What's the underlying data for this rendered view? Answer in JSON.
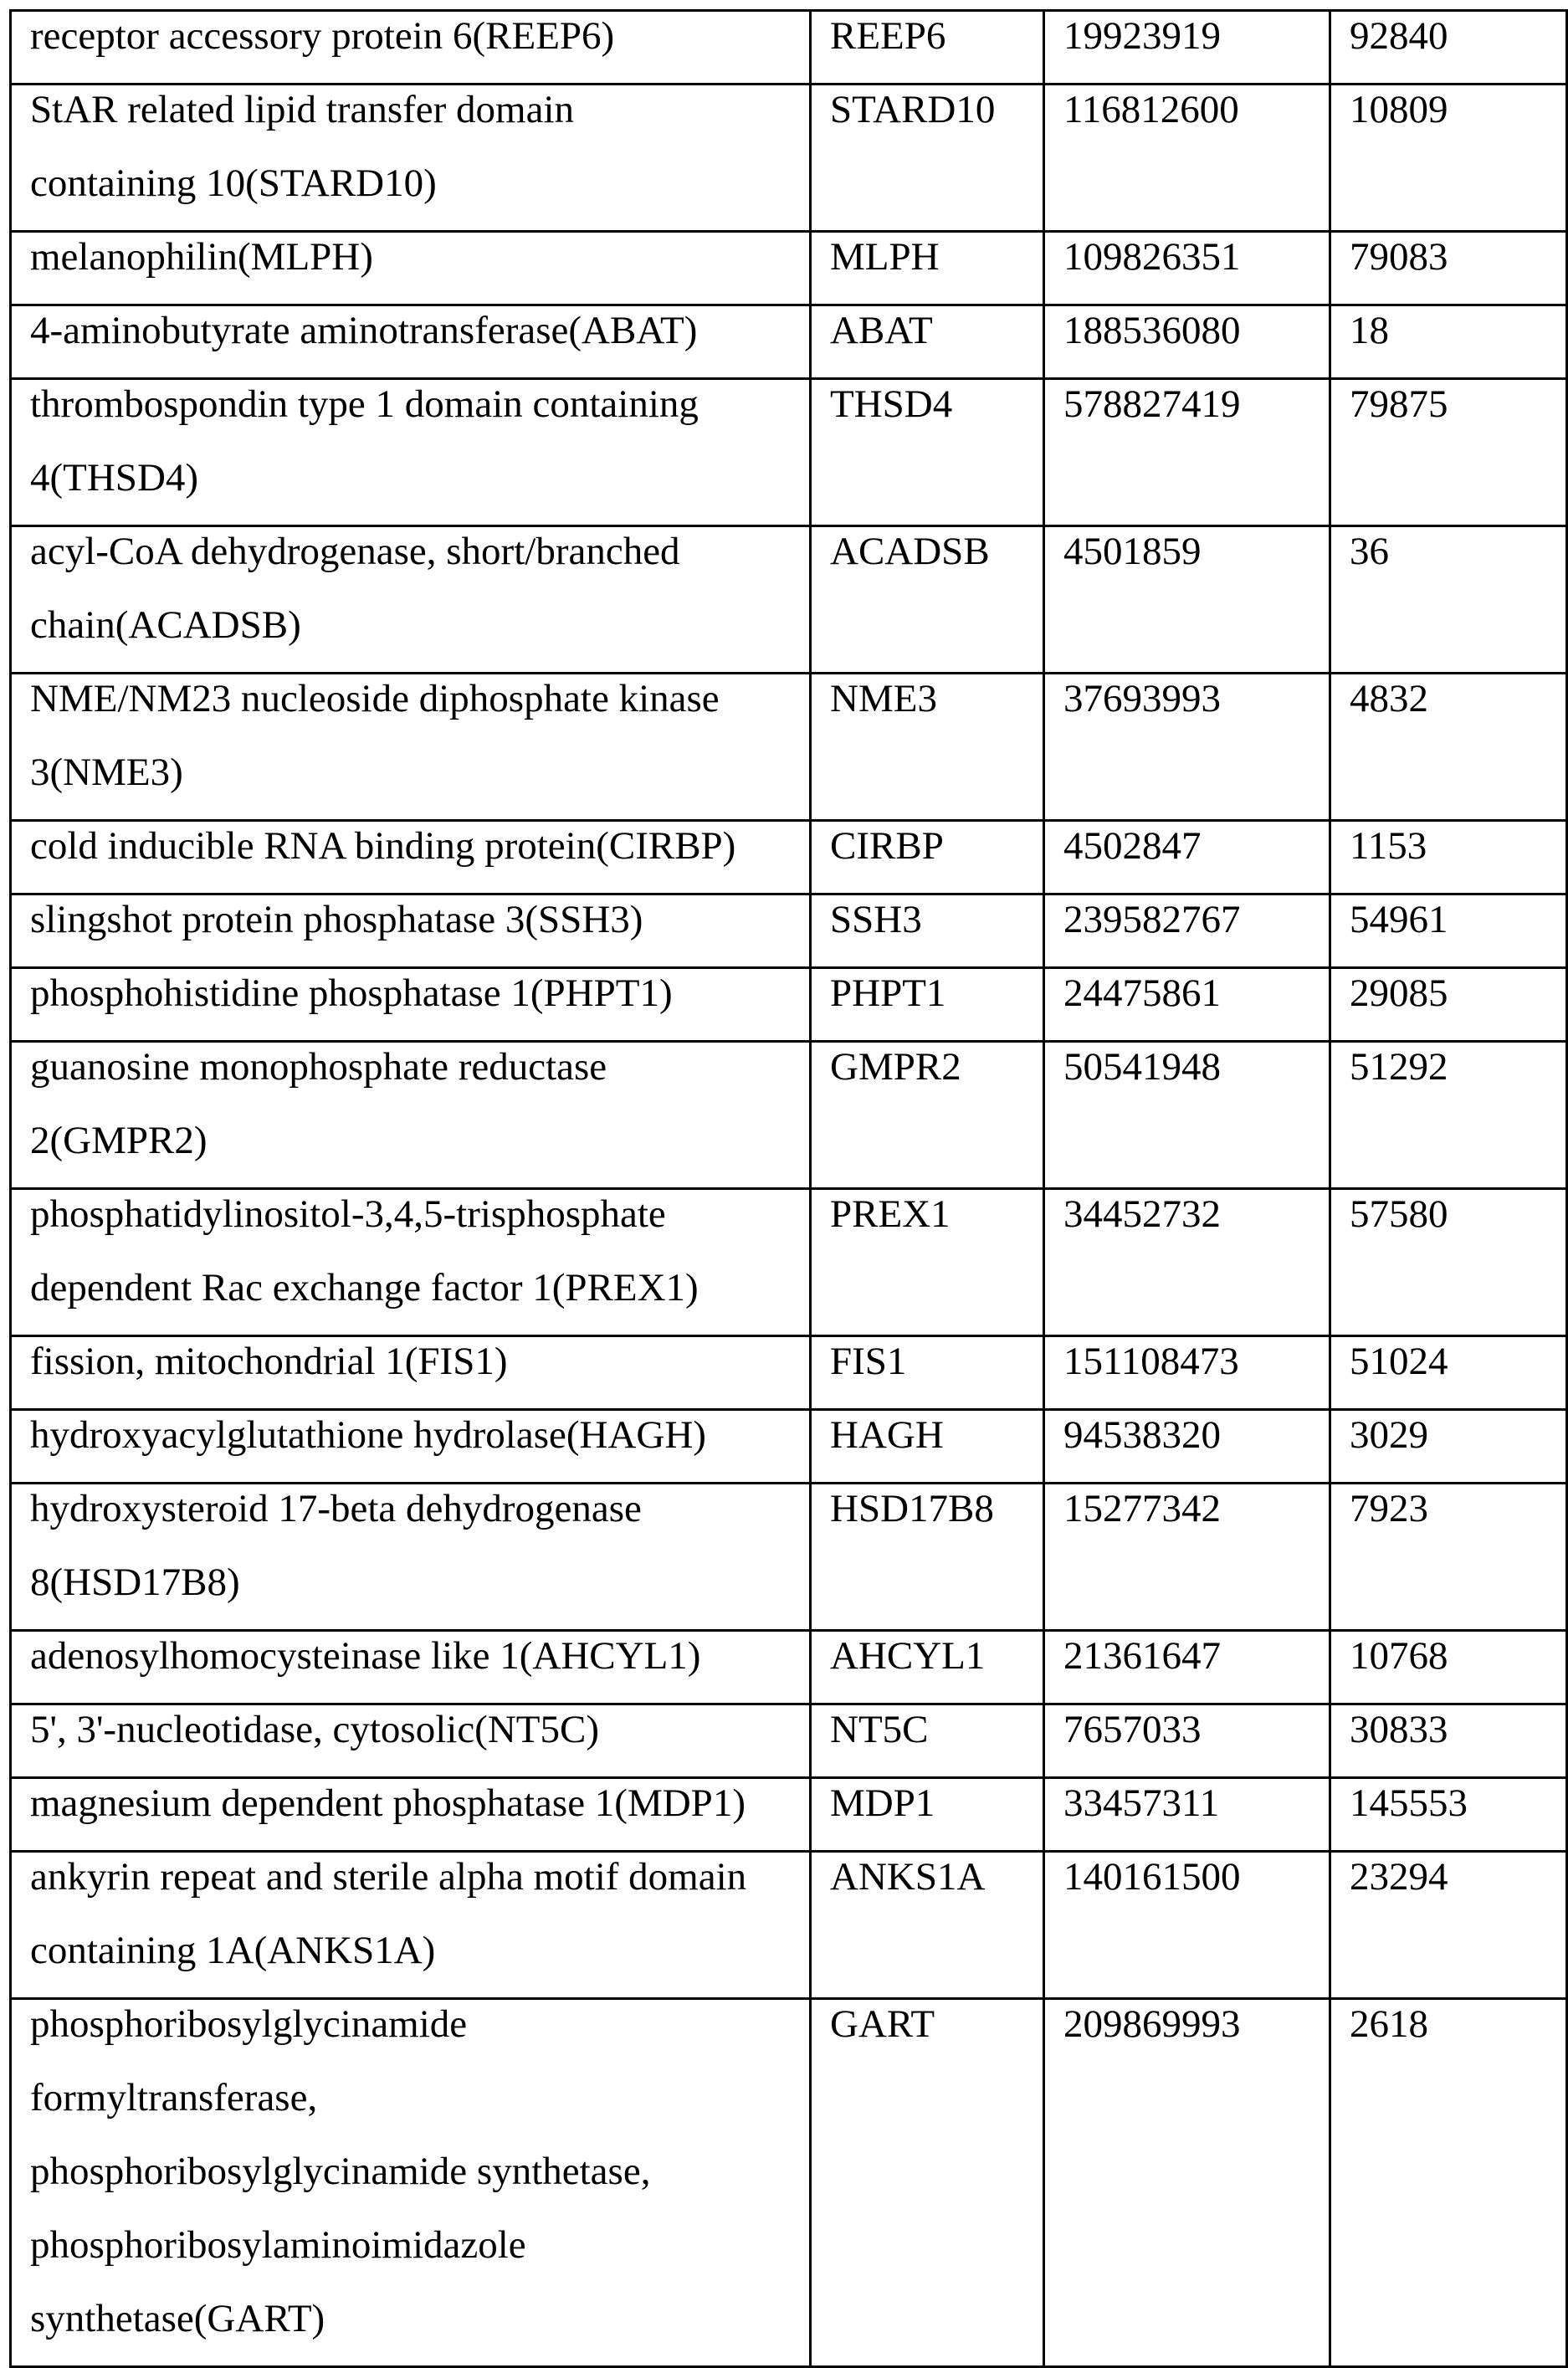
{
  "table": {
    "rows": [
      {
        "name": "receptor accessory protein 6(REEP6)",
        "symbol": "REEP6",
        "gi": "19923919",
        "gene_id": "92840"
      },
      {
        "name": "StAR related lipid transfer domain\ncontaining 10(STARD10)",
        "symbol": "STARD10",
        "gi": "116812600",
        "gene_id": "10809"
      },
      {
        "name": "melanophilin(MLPH)",
        "symbol": "MLPH",
        "gi": "109826351",
        "gene_id": "79083"
      },
      {
        "name": "4-aminobutyrate aminotransferase(ABAT)",
        "symbol": "ABAT",
        "gi": "188536080",
        "gene_id": "18"
      },
      {
        "name": "thrombospondin type 1 domain containing\n4(THSD4)",
        "symbol": "THSD4",
        "gi": "578827419",
        "gene_id": "79875"
      },
      {
        "name": "acyl-CoA dehydrogenase, short/branched\nchain(ACADSB)",
        "symbol": "ACADSB",
        "gi": "4501859",
        "gene_id": "36"
      },
      {
        "name": "NME/NM23 nucleoside diphosphate kinase\n3(NME3)",
        "symbol": "NME3",
        "gi": "37693993",
        "gene_id": "4832"
      },
      {
        "name": "cold inducible RNA binding protein(CIRBP)",
        "symbol": "CIRBP",
        "gi": "4502847",
        "gene_id": "1153"
      },
      {
        "name": "slingshot protein phosphatase 3(SSH3)",
        "symbol": "SSH3",
        "gi": "239582767",
        "gene_id": "54961"
      },
      {
        "name": "phosphohistidine phosphatase 1(PHPT1)",
        "symbol": "PHPT1",
        "gi": "24475861",
        "gene_id": "29085"
      },
      {
        "name": "guanosine monophosphate reductase\n2(GMPR2)",
        "symbol": "GMPR2",
        "gi": "50541948",
        "gene_id": "51292"
      },
      {
        "name": "phosphatidylinositol-3,4,5-trisphosphate\ndependent Rac exchange factor 1(PREX1)",
        "symbol": "PREX1",
        "gi": "34452732",
        "gene_id": "57580"
      },
      {
        "name": "fission, mitochondrial 1(FIS1)",
        "symbol": "FIS1",
        "gi": "151108473",
        "gene_id": "51024"
      },
      {
        "name": "hydroxyacylglutathione hydrolase(HAGH)",
        "symbol": "HAGH",
        "gi": "94538320",
        "gene_id": "3029"
      },
      {
        "name": "hydroxysteroid 17-beta dehydrogenase\n8(HSD17B8)",
        "symbol": "HSD17B8",
        "gi": "15277342",
        "gene_id": "7923"
      },
      {
        "name": "adenosylhomocysteinase like 1(AHCYL1)",
        "symbol": "AHCYL1",
        "gi": "21361647",
        "gene_id": "10768"
      },
      {
        "name": "5', 3'-nucleotidase, cytosolic(NT5C)",
        "symbol": "NT5C",
        "gi": "7657033",
        "gene_id": "30833"
      },
      {
        "name": "magnesium dependent phosphatase 1(MDP1)",
        "symbol": "MDP1",
        "gi": "33457311",
        "gene_id": "145553"
      },
      {
        "name": "ankyrin repeat and sterile alpha motif domain\ncontaining 1A(ANKS1A)",
        "symbol": "ANKS1A",
        "gi": "140161500",
        "gene_id": "23294"
      },
      {
        "name": "phosphoribosylglycinamide\nformyltransferase,\nphosphoribosylglycinamide synthetase,\nphosphoribosylaminoimidazole\nsynthetase(GART)",
        "symbol": "GART",
        "gi": "209869993",
        "gene_id": "2618"
      }
    ]
  }
}
